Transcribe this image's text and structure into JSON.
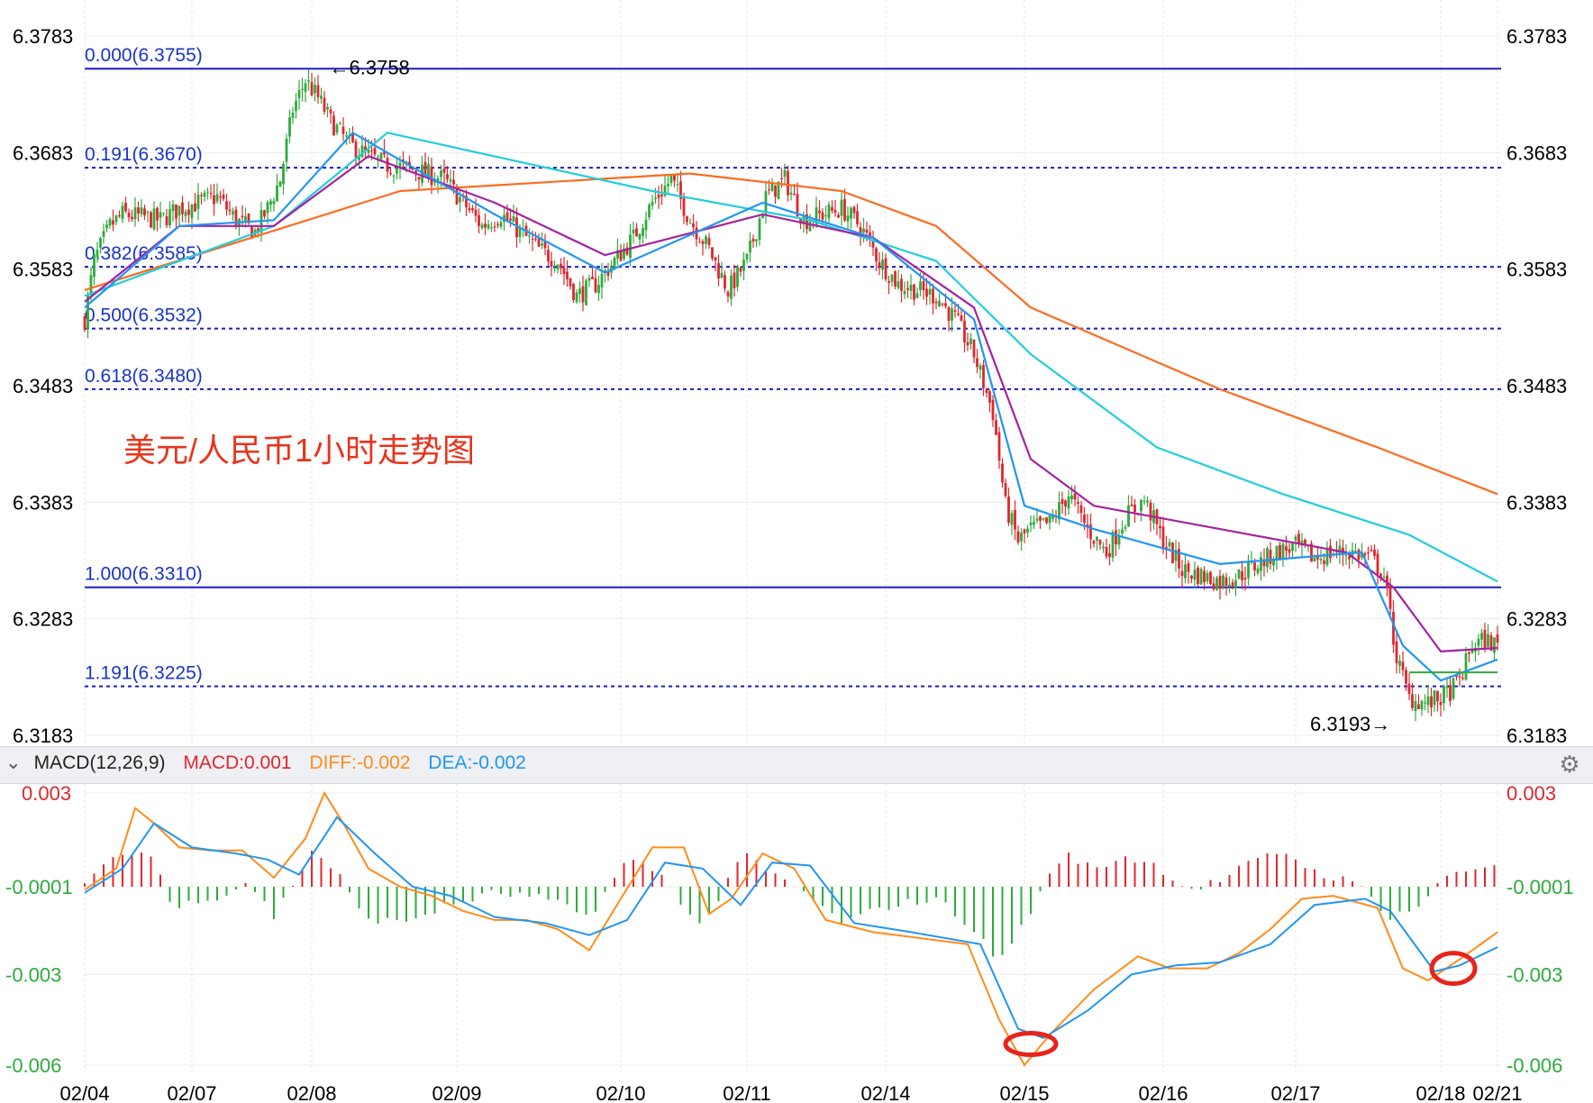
{
  "chart_data": [
    {
      "type": "candlestick",
      "title": "美元/人民币1小时走势图",
      "ylim": [
        6.3183,
        6.3783
      ],
      "y_ticks": [
        "6.3783",
        "6.3683",
        "6.3583",
        "6.3483",
        "6.3383",
        "6.3283",
        "6.3183"
      ],
      "x_ticks": [
        "02/04",
        "02/07",
        "02/08",
        "02/09",
        "02/10",
        "02/11",
        "02/14",
        "02/15",
        "02/16",
        "02/17",
        "02/18",
        "02/21"
      ],
      "fibonacci_levels": [
        {
          "label": "0.000(6.3755)",
          "value": 6.3755,
          "style": "solid"
        },
        {
          "label": "0.191(6.3670)",
          "value": 6.367,
          "style": "dotted"
        },
        {
          "label": "0.382(6.3585)",
          "value": 6.3585,
          "style": "dotted"
        },
        {
          "label": "0.500(6.3532)",
          "value": 6.3532,
          "style": "dotted"
        },
        {
          "label": "0.618(6.3480)",
          "value": 6.348,
          "style": "dotted"
        },
        {
          "label": "1.000(6.3310)",
          "value": 6.331,
          "style": "solid"
        },
        {
          "label": "1.191(6.3225)",
          "value": 6.3225,
          "style": "dotted"
        }
      ],
      "annotations": {
        "high": {
          "label": "←6.3758",
          "value": 6.3758,
          "date": "02/08"
        },
        "low": {
          "label": "6.3193→",
          "value": 6.3193,
          "date": "02/18"
        }
      },
      "price_path": [
        [
          0,
          6.354
        ],
        [
          3,
          6.359
        ],
        [
          8,
          6.362
        ],
        [
          12,
          6.363
        ],
        [
          18,
          6.3628
        ],
        [
          24,
          6.3625
        ],
        [
          30,
          6.3635
        ],
        [
          36,
          6.364
        ],
        [
          42,
          6.3645
        ],
        [
          48,
          6.3625
        ],
        [
          54,
          6.3615
        ],
        [
          58,
          6.3635
        ],
        [
          62,
          6.366
        ],
        [
          66,
          6.372
        ],
        [
          70,
          6.3745
        ],
        [
          74,
          6.373
        ],
        [
          78,
          6.371
        ],
        [
          84,
          6.369
        ],
        [
          90,
          6.368
        ],
        [
          96,
          6.3672
        ],
        [
          102,
          6.367
        ],
        [
          108,
          6.3665
        ],
        [
          114,
          6.366
        ],
        [
          120,
          6.364
        ],
        [
          126,
          6.362
        ],
        [
          132,
          6.363
        ],
        [
          138,
          6.3615
        ],
        [
          144,
          6.36
        ],
        [
          150,
          6.359
        ],
        [
          156,
          6.356
        ],
        [
          162,
          6.357
        ],
        [
          168,
          6.359
        ],
        [
          174,
          6.361
        ],
        [
          180,
          6.364
        ],
        [
          186,
          6.366
        ],
        [
          192,
          6.3625
        ],
        [
          198,
          6.36
        ],
        [
          204,
          6.3565
        ],
        [
          210,
          6.359
        ],
        [
          216,
          6.3645
        ],
        [
          222,
          6.366
        ],
        [
          228,
          6.3625
        ],
        [
          234,
          6.363
        ],
        [
          240,
          6.3635
        ],
        [
          246,
          6.362
        ],
        [
          252,
          6.359
        ],
        [
          258,
          6.357
        ],
        [
          264,
          6.3565
        ],
        [
          270,
          6.356
        ],
        [
          276,
          6.354
        ],
        [
          282,
          6.351
        ],
        [
          288,
          6.346
        ],
        [
          292,
          6.338
        ],
        [
          296,
          6.335
        ],
        [
          300,
          6.336
        ],
        [
          306,
          6.3365
        ],
        [
          312,
          6.339
        ],
        [
          318,
          6.336
        ],
        [
          324,
          6.334
        ],
        [
          330,
          6.337
        ],
        [
          336,
          6.3385
        ],
        [
          342,
          6.335
        ],
        [
          348,
          6.3325
        ],
        [
          354,
          6.332
        ],
        [
          360,
          6.3315
        ],
        [
          366,
          6.332
        ],
        [
          372,
          6.333
        ],
        [
          378,
          6.334
        ],
        [
          384,
          6.3345
        ],
        [
          390,
          6.3335
        ],
        [
          396,
          6.334
        ],
        [
          402,
          6.334
        ],
        [
          408,
          6.3335
        ],
        [
          412,
          6.332
        ],
        [
          416,
          6.325
        ],
        [
          420,
          6.3215
        ],
        [
          426,
          6.321
        ],
        [
          432,
          6.3218
        ],
        [
          436,
          6.323
        ],
        [
          440,
          6.326
        ],
        [
          444,
          6.3265
        ],
        [
          448,
          6.326
        ]
      ],
      "moving_averages": [
        {
          "color": "#ff6a1f",
          "path": [
            [
              0,
              6.3565
            ],
            [
              100,
              6.365
            ],
            [
              192,
              6.3665
            ],
            [
              240,
              6.365
            ],
            [
              270,
              6.362
            ],
            [
              300,
              6.355
            ],
            [
              360,
              6.348
            ],
            [
              410,
              6.343
            ],
            [
              448,
              6.339
            ]
          ]
        },
        {
          "color": "#22cedc",
          "path": [
            [
              0,
              6.356
            ],
            [
              60,
              6.362
            ],
            [
              96,
              6.37
            ],
            [
              180,
              6.365
            ],
            [
              230,
              6.3625
            ],
            [
              270,
              6.359
            ],
            [
              300,
              6.351
            ],
            [
              340,
              6.343
            ],
            [
              380,
              6.339
            ],
            [
              420,
              6.3355
            ],
            [
              448,
              6.3315
            ]
          ]
        },
        {
          "color": "#a4239f",
          "path": [
            [
              0,
              6.3555
            ],
            [
              30,
              6.362
            ],
            [
              60,
              6.362
            ],
            [
              90,
              6.368
            ],
            [
              130,
              6.364
            ],
            [
              165,
              6.3595
            ],
            [
              215,
              6.363
            ],
            [
              250,
              6.361
            ],
            [
              282,
              6.355
            ],
            [
              300,
              6.342
            ],
            [
              320,
              6.338
            ],
            [
              360,
              6.336
            ],
            [
              400,
              6.334
            ],
            [
              415,
              6.331
            ],
            [
              430,
              6.3255
            ],
            [
              448,
              6.3258
            ]
          ]
        },
        {
          "color": "#2196f3",
          "path": [
            [
              0,
              6.355
            ],
            [
              30,
              6.362
            ],
            [
              60,
              6.3625
            ],
            [
              85,
              6.37
            ],
            [
              130,
              6.363
            ],
            [
              165,
              6.358
            ],
            [
              215,
              6.364
            ],
            [
              250,
              6.361
            ],
            [
              282,
              6.354
            ],
            [
              298,
              6.338
            ],
            [
              320,
              6.336
            ],
            [
              360,
              6.333
            ],
            [
              405,
              6.334
            ],
            [
              418,
              6.326
            ],
            [
              430,
              6.323
            ],
            [
              448,
              6.3248
            ]
          ]
        }
      ],
      "flat_level": {
        "value": 6.3237,
        "color": "#2eab3c"
      }
    },
    {
      "type": "macd",
      "params": "MACD(12,26,9)",
      "ylim": [
        -0.006,
        0.003
      ],
      "y_ticks": [
        {
          "label": "0.003",
          "color": "#e0262e"
        },
        {
          "label": "-0.0001",
          "color": "#2eab3c"
        },
        {
          "label": "-0.003",
          "color": "#2eab3c"
        },
        {
          "label": "-0.006",
          "color": "#2eab3c"
        }
      ],
      "legend": {
        "macd": {
          "label": "MACD:0.001",
          "color": "#e0262e"
        },
        "diff": {
          "label": "DIFF:-0.002",
          "color": "#ff8c1a"
        },
        "dea": {
          "label": "DEA:-0.002",
          "color": "#2196f3"
        }
      },
      "diff_path": [
        [
          0,
          -0.0002
        ],
        [
          10,
          0.0005
        ],
        [
          16,
          0.0025
        ],
        [
          22,
          0.002
        ],
        [
          30,
          0.0012
        ],
        [
          40,
          0.0011
        ],
        [
          50,
          0.0011
        ],
        [
          60,
          0.0002
        ],
        [
          70,
          0.0015
        ],
        [
          76,
          0.003
        ],
        [
          82,
          0.002
        ],
        [
          90,
          0.0005
        ],
        [
          100,
          -0.0001
        ],
        [
          110,
          -0.0004
        ],
        [
          120,
          -0.0009
        ],
        [
          130,
          -0.0012
        ],
        [
          140,
          -0.0012
        ],
        [
          150,
          -0.0015
        ],
        [
          160,
          -0.0022
        ],
        [
          170,
          -0.0005
        ],
        [
          180,
          0.0012
        ],
        [
          190,
          0.0012
        ],
        [
          198,
          -0.001
        ],
        [
          205,
          -0.0005
        ],
        [
          215,
          0.001
        ],
        [
          225,
          0.0005
        ],
        [
          235,
          -0.0012
        ],
        [
          250,
          -0.0016
        ],
        [
          265,
          -0.0018
        ],
        [
          280,
          -0.002
        ],
        [
          290,
          -0.0045
        ],
        [
          298,
          -0.006
        ],
        [
          306,
          -0.005
        ],
        [
          320,
          -0.0035
        ],
        [
          334,
          -0.0024
        ],
        [
          344,
          -0.0028
        ],
        [
          356,
          -0.0028
        ],
        [
          366,
          -0.0023
        ],
        [
          376,
          -0.0015
        ],
        [
          386,
          -0.0005
        ],
        [
          396,
          -0.0004
        ],
        [
          410,
          -0.0008
        ],
        [
          418,
          -0.0028
        ],
        [
          426,
          -0.0032
        ],
        [
          436,
          -0.0025
        ],
        [
          448,
          -0.0016
        ]
      ],
      "dea_path": [
        [
          0,
          -0.0003
        ],
        [
          12,
          0.0005
        ],
        [
          22,
          0.002
        ],
        [
          34,
          0.0012
        ],
        [
          48,
          0.001
        ],
        [
          58,
          0.0008
        ],
        [
          68,
          0.0003
        ],
        [
          80,
          0.0022
        ],
        [
          92,
          0.001
        ],
        [
          104,
          -0.0001
        ],
        [
          116,
          -0.0004
        ],
        [
          130,
          -0.0011
        ],
        [
          146,
          -0.0013
        ],
        [
          160,
          -0.0017
        ],
        [
          172,
          -0.0012
        ],
        [
          184,
          0.0007
        ],
        [
          196,
          0.0005
        ],
        [
          208,
          -0.0007
        ],
        [
          218,
          0.0007
        ],
        [
          230,
          0.0006
        ],
        [
          244,
          -0.0013
        ],
        [
          262,
          -0.0016
        ],
        [
          284,
          -0.002
        ],
        [
          296,
          -0.0048
        ],
        [
          304,
          -0.0051
        ],
        [
          318,
          -0.0042
        ],
        [
          332,
          -0.003
        ],
        [
          346,
          -0.0027
        ],
        [
          360,
          -0.0026
        ],
        [
          376,
          -0.002
        ],
        [
          390,
          -0.0007
        ],
        [
          406,
          -0.0005
        ],
        [
          414,
          -0.0009
        ],
        [
          428,
          -0.0029
        ],
        [
          436,
          -0.0027
        ],
        [
          448,
          -0.0021
        ]
      ],
      "histogram_path": [
        [
          0,
          0.0002
        ],
        [
          14,
          0.0012
        ],
        [
          22,
          0.001
        ],
        [
          28,
          -0.0008
        ],
        [
          36,
          -0.0004
        ],
        [
          44,
          -0.0003
        ],
        [
          52,
          0.0002
        ],
        [
          60,
          -0.001
        ],
        [
          72,
          0.0012
        ],
        [
          80,
          0.0005
        ],
        [
          88,
          -0.001
        ],
        [
          100,
          -0.0012
        ],
        [
          116,
          -0.0006
        ],
        [
          130,
          -0.0002
        ],
        [
          146,
          -0.0004
        ],
        [
          160,
          -0.001
        ],
        [
          172,
          0.0009
        ],
        [
          182,
          0.0005
        ],
        [
          196,
          -0.0014
        ],
        [
          208,
          0.0011
        ],
        [
          218,
          0.0004
        ],
        [
          228,
          -0.0002
        ],
        [
          240,
          -0.0012
        ],
        [
          256,
          -0.0006
        ],
        [
          270,
          -0.0004
        ],
        [
          280,
          -0.0012
        ],
        [
          290,
          -0.0025
        ],
        [
          300,
          -0.0008
        ],
        [
          310,
          0.0011
        ],
        [
          320,
          0.0006
        ],
        [
          330,
          0.001
        ],
        [
          340,
          0.0007
        ],
        [
          350,
          -0.0001
        ],
        [
          360,
          0.0002
        ],
        [
          370,
          0.0008
        ],
        [
          380,
          0.0012
        ],
        [
          390,
          0.0005
        ],
        [
          400,
          0.0002
        ],
        [
          406,
          -0.0001
        ],
        [
          414,
          -0.001
        ],
        [
          424,
          -0.0006
        ],
        [
          432,
          0.0004
        ],
        [
          448,
          0.0008
        ]
      ]
    }
  ]
}
